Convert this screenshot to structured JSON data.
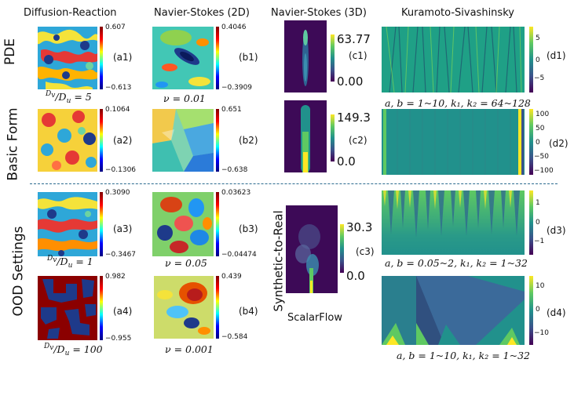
{
  "columns": {
    "dr": "Diffusion-Reaction",
    "ns2d": "Navier-Stokes (2D)",
    "ns3d": "Navier-Stokes (3D)",
    "ks": "Kuramoto-Sivashinsky"
  },
  "row_labels": {
    "pde_basic": "PDE\nBasic Form",
    "pde": "PDE",
    "basic": "Basic Form",
    "ood": "OOD Settings",
    "syn2real": "Synthetic-to-Real"
  },
  "panels": {
    "a1": {
      "tag": "(a1)",
      "max": "0.607",
      "min": "−0.613"
    },
    "a2": {
      "tag": "(a2)",
      "max": "0.1064",
      "min": "−0.1306"
    },
    "a3": {
      "tag": "(a3)",
      "max": "0.3090",
      "min": "−0.3467"
    },
    "a4": {
      "tag": "(a4)",
      "max": "0.982",
      "min": "−0.955"
    },
    "b1": {
      "tag": "(b1)",
      "max": "0.4046",
      "min": "−0.3909"
    },
    "b2": {
      "tag": "(b2)",
      "max": "0.651",
      "min": "−0.638"
    },
    "b3": {
      "tag": "(b3)",
      "max": "0.03623",
      "min": "−0.04474"
    },
    "b4": {
      "tag": "(b4)",
      "max": "0.439",
      "min": "−0.584"
    },
    "c1": {
      "tag": "(c1)",
      "max": "63.77",
      "min": "0.00"
    },
    "c2": {
      "tag": "(c2)",
      "max": "149.3",
      "min": "0.0"
    },
    "c3": {
      "tag": "(c3)",
      "max": "30.3",
      "min": "0.0"
    },
    "d1": {
      "tag": "(d1)",
      "ticks": [
        "5",
        "0",
        "−5"
      ]
    },
    "d2": {
      "tag": "(d2)",
      "ticks": [
        "100",
        "50",
        "0",
        "−50",
        "−100"
      ]
    },
    "d3": {
      "tag": "(d3)",
      "ticks": [
        "1",
        "0",
        "−1"
      ]
    },
    "d4": {
      "tag": "(d4)",
      "ticks": [
        "10",
        "0",
        "−10"
      ]
    }
  },
  "captions": {
    "a1_ratio": {
      "num": "D",
      "num_sub": "v",
      "den": "D",
      "den_sub": "u",
      "eq": " = 5"
    },
    "a3_ratio": {
      "num": "D",
      "num_sub": "v",
      "den": "D",
      "den_sub": "u",
      "eq": " = 1"
    },
    "a4_ratio": {
      "num": "D",
      "num_sub": "v",
      "den": "D",
      "den_sub": "u",
      "eq": " = 100"
    },
    "b1_nu": "ν = 0.01",
    "b3_nu": "ν = 0.05",
    "b4_nu": "ν = 0.001",
    "c3_source": "ScalarFlow",
    "d1_param": "a, b = 1~10, k₁, k₂  =  64~128",
    "d3_param": "a, b = 0.05~2, k₁, k₂  = 1~32",
    "d4_param": "a, b = 1~10, k₁, k₂  = 1~32"
  },
  "colors": {
    "divider": "#2b6a8f",
    "viridis_dark": "#440154",
    "viridis_teal": "#21918c",
    "viridis_yellow": "#fde725"
  }
}
